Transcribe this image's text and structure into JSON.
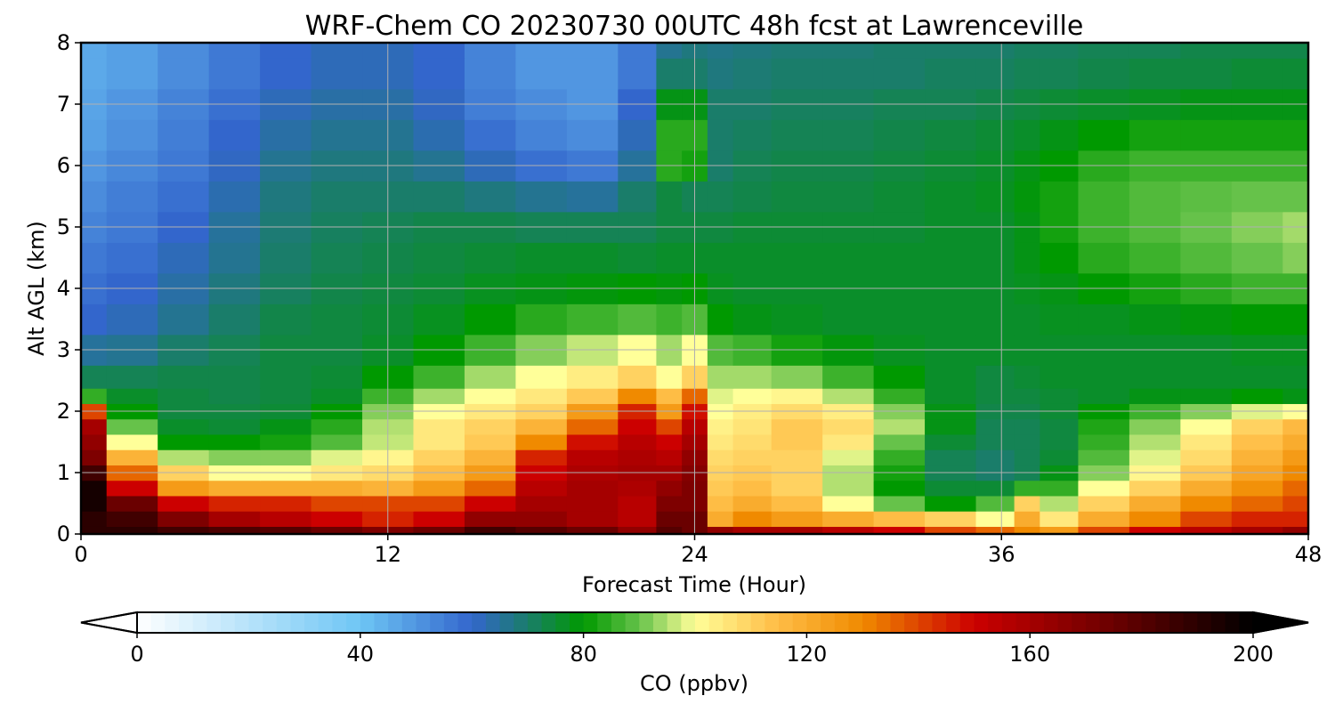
{
  "chart_data": {
    "type": "heatmap",
    "title": "WRF-Chem CO  20230730 00UTC 48h fcst at Lawrenceville",
    "xlabel": "Forecast Time (Hour)",
    "ylabel": "Alt AGL (km)",
    "xlim": [
      0,
      48
    ],
    "ylim": [
      0,
      8
    ],
    "x_ticks": [
      0,
      12,
      24,
      36,
      48
    ],
    "y_ticks": [
      0,
      1,
      2,
      3,
      4,
      5,
      6,
      7,
      8
    ],
    "grid": true,
    "x": [
      0,
      2,
      4,
      6,
      8,
      10,
      12,
      14,
      16,
      18,
      20,
      22,
      23,
      24,
      25,
      26,
      28,
      30,
      32,
      34,
      36,
      37,
      38,
      40,
      42,
      44,
      46,
      48
    ],
    "y": [
      0,
      0.25,
      0.5,
      0.75,
      1,
      1.25,
      1.5,
      1.75,
      2,
      2.25,
      2.5,
      3,
      3.5,
      4,
      4.5,
      5,
      5.5,
      6,
      6.5,
      7,
      7.5,
      8
    ],
    "z": [
      [
        190,
        190,
        185,
        182,
        180,
        175,
        170,
        175,
        185,
        180,
        175,
        165,
        180,
        175,
        165,
        160,
        160,
        155,
        150,
        140,
        135,
        130,
        125,
        140,
        150,
        155,
        160,
        165
      ],
      [
        190,
        185,
        170,
        160,
        155,
        150,
        145,
        150,
        165,
        165,
        160,
        155,
        175,
        175,
        120,
        130,
        125,
        120,
        115,
        110,
        100,
        120,
        105,
        120,
        130,
        140,
        145,
        145
      ],
      [
        195,
        175,
        150,
        145,
        145,
        140,
        140,
        140,
        150,
        160,
        160,
        155,
        170,
        170,
        115,
        120,
        115,
        100,
        90,
        80,
        88,
        110,
        95,
        110,
        120,
        130,
        135,
        140
      ],
      [
        195,
        150,
        125,
        120,
        120,
        120,
        118,
        125,
        135,
        155,
        160,
        158,
        165,
        170,
        112,
        115,
        110,
        95,
        80,
        75,
        75,
        85,
        85,
        100,
        110,
        120,
        128,
        135
      ],
      [
        185,
        135,
        110,
        100,
        100,
        105,
        108,
        115,
        125,
        150,
        158,
        160,
        160,
        168,
        110,
        112,
        110,
        95,
        82,
        72,
        70,
        72,
        78,
        92,
        102,
        112,
        122,
        130
      ],
      [
        170,
        118,
        95,
        92,
        92,
        98,
        102,
        110,
        118,
        145,
        155,
        158,
        155,
        165,
        108,
        110,
        110,
        98,
        85,
        72,
        70,
        72,
        75,
        88,
        98,
        108,
        118,
        125
      ],
      [
        165,
        100,
        80,
        80,
        82,
        88,
        96,
        105,
        112,
        130,
        148,
        155,
        150,
        160,
        105,
        108,
        112,
        105,
        90,
        75,
        72,
        72,
        74,
        85,
        95,
        105,
        114,
        120
      ],
      [
        160,
        90,
        76,
        75,
        78,
        84,
        95,
        105,
        110,
        118,
        135,
        150,
        140,
        155,
        103,
        106,
        112,
        108,
        95,
        78,
        72,
        72,
        74,
        83,
        92,
        100,
        110,
        116
      ],
      [
        140,
        80,
        74,
        74,
        75,
        80,
        92,
        100,
        105,
        110,
        125,
        145,
        125,
        148,
        100,
        104,
        108,
        104,
        92,
        78,
        73,
        73,
        75,
        80,
        86,
        92,
        98,
        100
      ],
      [
        85,
        76,
        74,
        73,
        74,
        76,
        86,
        94,
        100,
        105,
        112,
        130,
        115,
        135,
        98,
        100,
        102,
        95,
        85,
        76,
        74,
        74,
        75,
        76,
        78,
        78,
        80,
        78
      ],
      [
        72,
        72,
        73,
        73,
        74,
        75,
        80,
        86,
        94,
        100,
        104,
        110,
        100,
        110,
        94,
        94,
        92,
        86,
        80,
        76,
        74,
        75,
        76,
        76,
        76,
        76,
        76,
        76
      ],
      [
        65,
        66,
        70,
        72,
        74,
        74,
        76,
        80,
        86,
        92,
        96,
        100,
        94,
        100,
        88,
        86,
        82,
        79,
        77,
        76,
        76,
        76,
        76,
        76,
        76,
        76,
        77,
        77
      ],
      [
        60,
        62,
        66,
        70,
        73,
        74,
        75,
        77,
        80,
        84,
        86,
        88,
        86,
        88,
        80,
        78,
        77,
        76,
        76,
        76,
        76,
        76,
        77,
        77,
        78,
        79,
        80,
        80
      ],
      [
        58,
        60,
        64,
        68,
        71,
        73,
        74,
        75,
        77,
        78,
        79,
        80,
        79,
        80,
        77,
        76,
        76,
        76,
        76,
        76,
        76,
        77,
        78,
        80,
        82,
        84,
        86,
        86
      ],
      [
        56,
        58,
        62,
        66,
        70,
        72,
        73,
        74,
        75,
        76,
        76,
        75,
        76,
        76,
        76,
        76,
        76,
        76,
        76,
        76,
        76,
        78,
        80,
        84,
        86,
        88,
        90,
        92
      ],
      [
        54,
        56,
        60,
        65,
        69,
        71,
        72,
        73,
        73,
        72,
        72,
        72,
        74,
        74,
        74,
        75,
        75,
        75,
        75,
        76,
        76,
        78,
        82,
        86,
        88,
        90,
        92,
        94
      ],
      [
        52,
        55,
        58,
        63,
        68,
        70,
        70,
        70,
        68,
        66,
        65,
        70,
        74,
        72,
        72,
        73,
        74,
        74,
        75,
        76,
        77,
        79,
        82,
        86,
        88,
        89,
        90,
        90
      ],
      [
        50,
        53,
        56,
        61,
        66,
        68,
        68,
        66,
        62,
        58,
        56,
        65,
        84,
        82,
        70,
        72,
        73,
        73,
        74,
        75,
        76,
        78,
        80,
        84,
        86,
        86,
        86,
        86
      ],
      [
        48,
        51,
        55,
        60,
        64,
        66,
        66,
        63,
        58,
        54,
        52,
        62,
        84,
        84,
        70,
        71,
        72,
        72,
        73,
        74,
        75,
        76,
        78,
        80,
        82,
        82,
        82,
        82
      ],
      [
        47,
        50,
        54,
        58,
        62,
        64,
        64,
        61,
        55,
        52,
        50,
        60,
        78,
        78,
        70,
        70,
        71,
        71,
        72,
        72,
        73,
        74,
        75,
        76,
        77,
        78,
        78,
        78
      ],
      [
        46,
        48,
        52,
        56,
        60,
        62,
        62,
        60,
        54,
        50,
        50,
        56,
        70,
        70,
        68,
        69,
        70,
        70,
        70,
        71,
        71,
        72,
        72,
        73,
        74,
        74,
        75,
        75
      ],
      [
        46,
        48,
        52,
        56,
        60,
        62,
        62,
        60,
        54,
        50,
        50,
        56,
        66,
        68,
        67,
        68,
        69,
        69,
        70,
        70,
        70,
        71,
        71,
        72,
        72,
        73,
        73,
        73
      ]
    ],
    "colorbar": {
      "label": "CO  (ppbv)",
      "min": 0,
      "max": 200,
      "ticks": [
        0,
        40,
        80,
        120,
        160,
        200
      ],
      "extend": "both",
      "colors": [
        "#ffffff",
        "#6ec6f5",
        "#3366cc",
        "#1a7d6a",
        "#009900",
        "#66c24a",
        "#ffff99",
        "#ffc04a",
        "#f08a00",
        "#cc0000",
        "#660000",
        "#000000"
      ],
      "stops": [
        0,
        0.2,
        0.3,
        0.35,
        0.4,
        0.45,
        0.5,
        0.57,
        0.65,
        0.75,
        0.88,
        1
      ]
    }
  }
}
